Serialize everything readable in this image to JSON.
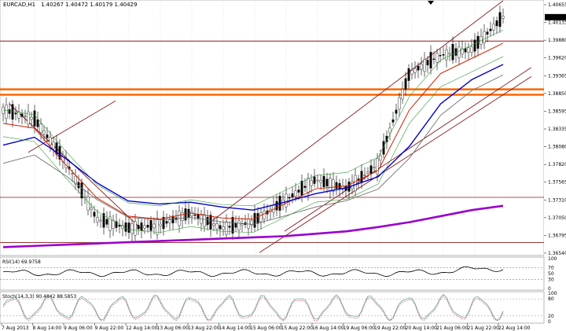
{
  "window": {
    "title": "EURCAD,H1",
    "ohlc": "1.40267 1.40472 1.40179 1.40429"
  },
  "price_axis": {
    "ticks": [
      "1.40655",
      "1.40135",
      "1.39880",
      "1.39620",
      "1.39365",
      "1.38850",
      "1.38595",
      "1.38335",
      "1.38080",
      "1.37820",
      "1.37565",
      "1.37310",
      "1.37050",
      "1.36795",
      "1.36540"
    ],
    "current_price": "1.40429",
    "level_labels": {
      "resistance": "1.40035",
      "support_upper": "1.39240",
      "support_lower": "1.39150",
      "lower_a": "1.37460",
      "lower_b": "1.36714"
    }
  },
  "time_axis": {
    "labels": [
      "7 Aug 2013",
      "8 Aug 14:00",
      "9 Aug 06:00",
      "9 Aug 22:00",
      "12 Aug 14:00",
      "13 Aug 06:00",
      "13 Aug 22:00",
      "14 Aug 14:00",
      "15 Aug 06:00",
      "15 Aug 22:00",
      "16 Aug 14:00",
      "19 Aug 06:00",
      "19 Aug 22:00",
      "20 Aug 14:00",
      "21 Aug 06:00",
      "21 Aug 22:00",
      "22 Aug 14:00"
    ]
  },
  "indicators": {
    "rsi": {
      "header": "RSI(14) 69.9758",
      "levels": [
        "100",
        "70",
        "50",
        "30",
        "0"
      ]
    },
    "stoch": {
      "header": "Stoch(14,3,3) 90.4842 88.5853",
      "levels": [
        "100",
        "80",
        "20",
        "0"
      ]
    }
  },
  "colors": {
    "background": "#ffffff",
    "resistance_line": "#8b1a1a",
    "support_zone": "#ff6600",
    "ma_blue": "#0000cc",
    "ma_red": "#cc2200",
    "ma_purple": "#9900cc",
    "ma_gray": "#707070",
    "bollinger": "#339933",
    "channel": "#8b1a1a"
  },
  "chart_data": {
    "type": "line",
    "title": "EURCAD,H1",
    "xlabel": "",
    "ylabel": "",
    "ylim": [
      1.3654,
      1.4066
    ],
    "categories": [
      "7 Aug 2013",
      "8 Aug 14:00",
      "9 Aug 06:00",
      "9 Aug 22:00",
      "12 Aug 14:00",
      "13 Aug 06:00",
      "13 Aug 22:00",
      "14 Aug 14:00",
      "15 Aug 06:00",
      "15 Aug 22:00",
      "16 Aug 14:00",
      "19 Aug 06:00",
      "19 Aug 22:00",
      "20 Aug 14:00",
      "21 Aug 06:00",
      "21 Aug 22:00",
      "22 Aug 14:00"
    ],
    "series": [
      {
        "values": [
          1.389,
          1.3875,
          1.3805,
          1.371,
          1.3695,
          1.37,
          1.372,
          1.3695,
          1.3705,
          1.374,
          1.3775,
          1.376,
          1.38,
          1.395,
          1.398,
          1.399,
          1.4043
        ]
      },
      {
        "values": [
          1.3868,
          1.386,
          1.38,
          1.3745,
          1.3715,
          1.371,
          1.372,
          1.3712,
          1.371,
          1.3735,
          1.376,
          1.3765,
          1.379,
          1.389,
          1.395,
          1.3975,
          1.4
        ]
      },
      {
        "values": [
          1.3832,
          1.3845,
          1.381,
          1.377,
          1.374,
          1.3735,
          1.3738,
          1.373,
          1.3725,
          1.3738,
          1.3752,
          1.3762,
          1.378,
          1.383,
          1.39,
          1.394,
          1.3965
        ]
      },
      {
        "values": [
          1.3664,
          1.3666,
          1.3668,
          1.367,
          1.3672,
          1.3674,
          1.3676,
          1.3678,
          1.368,
          1.3682,
          1.3686,
          1.369,
          1.3697,
          1.3705,
          1.3715,
          1.3725,
          1.3732
        ]
      }
    ],
    "horizontal_levels": [
      1.40035,
      1.3924,
      1.3915,
      1.3746,
      1.36714
    ],
    "rsi_last": 69.9758,
    "stoch_last": [
      90.4842,
      88.5853
    ]
  }
}
